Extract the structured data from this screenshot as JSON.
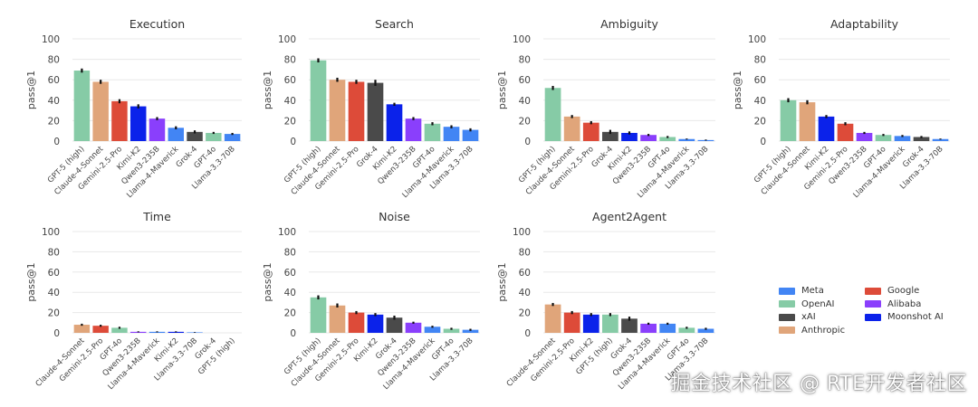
{
  "colors": {
    "Meta": "#4285f4",
    "OpenAI": "#86cba6",
    "xAI": "#4a4a4a",
    "Anthropic": "#e0a57a",
    "Google": "#dd4b39",
    "Alibaba": "#8a3ffc",
    "Moonshot AI": "#0b22ea"
  },
  "chart_data": [
    {
      "type": "bar",
      "title": "Execution",
      "ylabel": "pass@1",
      "ylim": [
        0,
        100
      ],
      "yticks": [
        "0",
        "20",
        "40",
        "60",
        "80",
        "100"
      ],
      "categories": [
        "GPT-5 (high)",
        "Claude-4-Sonnet",
        "Gemini-2.5-Pro",
        "Kimi-K2",
        "Qwen3-235B",
        "Llama-4-Maverick",
        "Grok-4",
        "GPT-4o",
        "Llama-3.3-70B"
      ],
      "providers": [
        "OpenAI",
        "Anthropic",
        "Google",
        "Moonshot AI",
        "Alibaba",
        "Meta",
        "xAI",
        "OpenAI",
        "Meta"
      ],
      "values": [
        69,
        58,
        39,
        34,
        22,
        13,
        9,
        8,
        7
      ],
      "errors": [
        2,
        2,
        2,
        2,
        1.5,
        1.5,
        1.5,
        1,
        1
      ]
    },
    {
      "type": "bar",
      "title": "Search",
      "ylabel": "pass@1",
      "ylim": [
        0,
        100
      ],
      "yticks": [
        "0",
        "20",
        "40",
        "60",
        "80",
        "100"
      ],
      "categories": [
        "GPT-5 (high)",
        "Claude-4-Sonnet",
        "Gemini-2.5-Pro",
        "Grok-4",
        "Kimi-K2",
        "Qwen3-235B",
        "GPT-4o",
        "Llama-4-Maverick",
        "Llama-3.3-70B"
      ],
      "providers": [
        "OpenAI",
        "Anthropic",
        "Google",
        "xAI",
        "Moonshot AI",
        "Alibaba",
        "OpenAI",
        "Meta",
        "Meta"
      ],
      "values": [
        79,
        60,
        58,
        57,
        36,
        22,
        17,
        14,
        11
      ],
      "errors": [
        2,
        2,
        2,
        3,
        1.5,
        1.5,
        1.5,
        1.5,
        1.5
      ]
    },
    {
      "type": "bar",
      "title": "Ambiguity",
      "ylabel": "pass@1",
      "ylim": [
        0,
        100
      ],
      "yticks": [
        "0",
        "20",
        "40",
        "60",
        "80",
        "100"
      ],
      "categories": [
        "GPT-5 (high)",
        "Claude-4-Sonnet",
        "Gemini-2.5-Pro",
        "Grok-4",
        "Kimi-K2",
        "Qwen3-235B",
        "GPT-4o",
        "Llama-4-Maverick",
        "Llama-3.3-70B"
      ],
      "providers": [
        "OpenAI",
        "Anthropic",
        "Google",
        "xAI",
        "Moonshot AI",
        "Alibaba",
        "OpenAI",
        "Meta",
        "Meta"
      ],
      "values": [
        52,
        24,
        18,
        9,
        8,
        6,
        4,
        2,
        1
      ],
      "errors": [
        2,
        1.5,
        1.5,
        2,
        1.5,
        1,
        1,
        0.5,
        0.5
      ]
    },
    {
      "type": "bar",
      "title": "Adaptability",
      "ylabel": "pass@1",
      "ylim": [
        0,
        100
      ],
      "yticks": [
        "0",
        "20",
        "40",
        "60",
        "80",
        "100"
      ],
      "categories": [
        "GPT-5 (high)",
        "Claude-4-Sonnet",
        "Kimi-K2",
        "Gemini-2.5-Pro",
        "Qwen3-235B",
        "GPT-4o",
        "Llama-4-Maverick",
        "Grok-4",
        "Llama-3.3-70B"
      ],
      "providers": [
        "OpenAI",
        "Anthropic",
        "Moonshot AI",
        "Google",
        "Alibaba",
        "OpenAI",
        "Meta",
        "xAI",
        "Meta"
      ],
      "values": [
        40,
        38,
        24,
        17,
        8,
        6,
        5,
        4,
        2
      ],
      "errors": [
        2,
        2,
        1.5,
        1.5,
        1,
        1,
        1,
        1,
        0.5
      ]
    },
    {
      "type": "bar",
      "title": "Time",
      "ylabel": "pass@1",
      "ylim": [
        0,
        100
      ],
      "yticks": [
        "0",
        "20",
        "40",
        "60",
        "80",
        "100"
      ],
      "categories": [
        "Claude-4-Sonnet",
        "Gemini-2.5-Pro",
        "GPT-4o",
        "Qwen3-235B",
        "Llama-4-Maverick",
        "Kimi-K2",
        "Llama-3.3-70B",
        "Grok-4",
        "GPT-5 (high)"
      ],
      "providers": [
        "Anthropic",
        "Google",
        "OpenAI",
        "Alibaba",
        "Meta",
        "Moonshot AI",
        "Meta",
        "xAI",
        "OpenAI"
      ],
      "values": [
        8,
        7,
        5,
        1,
        1,
        1,
        0.5,
        0,
        0
      ],
      "errors": [
        1,
        1,
        1,
        0.5,
        0.5,
        0.5,
        0.3,
        0,
        0
      ]
    },
    {
      "type": "bar",
      "title": "Noise",
      "ylabel": "pass@1",
      "ylim": [
        0,
        100
      ],
      "yticks": [
        "0",
        "20",
        "40",
        "60",
        "80",
        "100"
      ],
      "categories": [
        "GPT-5 (high)",
        "Claude-4-Sonnet",
        "Gemini-2.5-Pro",
        "Kimi-K2",
        "Grok-4",
        "Qwen3-235B",
        "Llama-4-Maverick",
        "GPT-4o",
        "Llama-3.3-70B"
      ],
      "providers": [
        "OpenAI",
        "Anthropic",
        "Google",
        "Moonshot AI",
        "xAI",
        "Alibaba",
        "Meta",
        "OpenAI",
        "Meta"
      ],
      "values": [
        35,
        27,
        20,
        18,
        15,
        10,
        6,
        4,
        3
      ],
      "errors": [
        2,
        2,
        1.5,
        1.5,
        2,
        1,
        1,
        1,
        1
      ]
    },
    {
      "type": "bar",
      "title": "Agent2Agent",
      "ylabel": "pass@1",
      "ylim": [
        0,
        100
      ],
      "yticks": [
        "0",
        "20",
        "40",
        "60",
        "80",
        "100"
      ],
      "categories": [
        "Claude-4-Sonnet",
        "Gemini-2.5-Pro",
        "Kimi-K2",
        "GPT-5 (high)",
        "Grok-4",
        "Qwen3-235B",
        "Llama-4-Maverick",
        "GPT-4o",
        "Llama-3.3-70B"
      ],
      "providers": [
        "Anthropic",
        "Google",
        "Moonshot AI",
        "OpenAI",
        "xAI",
        "Alibaba",
        "Meta",
        "OpenAI",
        "Meta"
      ],
      "values": [
        28,
        20,
        18,
        18,
        14,
        9,
        9,
        5,
        4
      ],
      "errors": [
        1.5,
        1.5,
        1.5,
        1.5,
        2,
        1,
        1,
        1,
        1
      ]
    }
  ],
  "legend": {
    "column1": [
      "Meta",
      "OpenAI",
      "xAI",
      "Anthropic"
    ],
    "column2": [
      "Google",
      "Alibaba",
      "Moonshot AI"
    ]
  },
  "watermark": "掘金技术社区 @ RTE开发者社区"
}
